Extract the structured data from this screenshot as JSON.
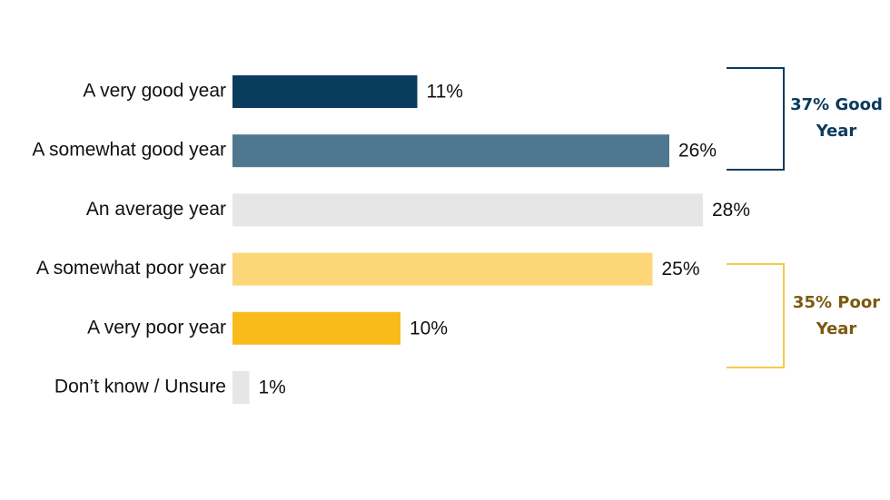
{
  "chart_data": {
    "type": "bar",
    "orientation": "horizontal",
    "categories": [
      "A very good year",
      "A somewhat good year",
      "An average year",
      "A somewhat poor year",
      "A very poor year",
      "Don’t know / Unsure"
    ],
    "values": [
      11,
      26,
      28,
      25,
      10,
      1
    ],
    "value_labels": [
      "11%",
      "26%",
      "28%",
      "25%",
      "10%",
      "1%"
    ],
    "colors": [
      "#083d5e",
      "#4f778f",
      "#e6e6e6",
      "#fcd779",
      "#f9bb1a",
      "#e6e6e6"
    ],
    "annotations": [
      {
        "text": "37% Good Year",
        "color": "#0b3a5c"
      },
      {
        "text": "35% Poor Year",
        "color": "#7a5a10"
      }
    ]
  }
}
